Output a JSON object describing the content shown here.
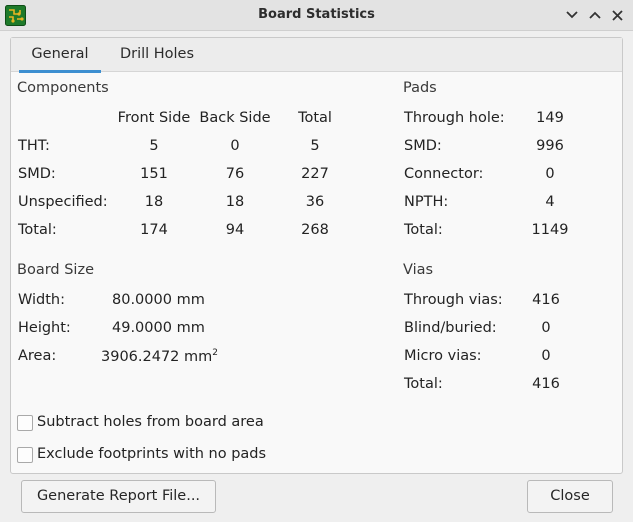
{
  "window": {
    "title": "Board Statistics",
    "minimize_glyph": "⌄",
    "maximize_glyph": "^",
    "close_glyph": "✕"
  },
  "tabs": [
    {
      "label": "General"
    },
    {
      "label": "Drill Holes"
    }
  ],
  "components": {
    "heading": "Components",
    "columns": [
      "Front Side",
      "Back Side",
      "Total"
    ],
    "rows": [
      {
        "label": "THT:",
        "front": "5",
        "back": "0",
        "total": "5"
      },
      {
        "label": "SMD:",
        "front": "151",
        "back": "76",
        "total": "227"
      },
      {
        "label": "Unspecified:",
        "front": "18",
        "back": "18",
        "total": "36"
      },
      {
        "label": "Total:",
        "front": "174",
        "back": "94",
        "total": "268"
      }
    ]
  },
  "pads": {
    "heading": "Pads",
    "rows": [
      {
        "label": "Through hole:",
        "value": "149"
      },
      {
        "label": "SMD:",
        "value": "996"
      },
      {
        "label": "Connector:",
        "value": "0"
      },
      {
        "label": "NPTH:",
        "value": "4"
      },
      {
        "label": "Total:",
        "value": "1149"
      }
    ]
  },
  "board_size": {
    "heading": "Board Size",
    "rows": [
      {
        "label": "Width:",
        "value": "80.0000 mm"
      },
      {
        "label": "Height:",
        "value": "49.0000 mm"
      },
      {
        "label": "Area:",
        "value": "3906.2472 mm",
        "superscript": "2"
      }
    ]
  },
  "vias": {
    "heading": "Vias",
    "rows": [
      {
        "label": "Through vias:",
        "value": "416"
      },
      {
        "label": "Blind/buried:",
        "value": "0"
      },
      {
        "label": "Micro vias:",
        "value": "0"
      },
      {
        "label": "Total:",
        "value": "416"
      }
    ]
  },
  "options": {
    "subtract_holes": {
      "label": "Subtract holes from board area",
      "checked": false
    },
    "exclude_footprints": {
      "label": "Exclude footprints with no pads",
      "checked": false
    }
  },
  "buttons": {
    "generate_report": "Generate Report File...",
    "close": "Close"
  },
  "colors": {
    "accent": "#3d8fd1",
    "icon_green": "#1e7a2a",
    "icon_gold": "#e6b422"
  }
}
